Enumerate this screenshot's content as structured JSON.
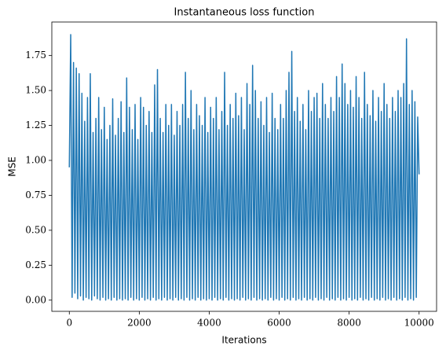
{
  "chart_data": {
    "type": "line",
    "title": "Instantaneous loss function",
    "x_label": "Iterations",
    "y_label": "MSE",
    "xlim": [
      -500,
      10500
    ],
    "ylim": [
      -0.08,
      1.99
    ],
    "xticks": [
      0,
      2000,
      4000,
      6000,
      8000,
      10000
    ],
    "yticks": [
      {
        "value": 0,
        "label": "0.00"
      },
      {
        "value": 0.25,
        "label": "0.25"
      },
      {
        "value": 0.5,
        "label": "0.50"
      },
      {
        "value": 0.75,
        "label": "0.75"
      },
      {
        "value": 1,
        "label": "1.00"
      },
      {
        "value": 1.25,
        "label": "1.25"
      },
      {
        "value": 1.5,
        "label": "1.50"
      },
      {
        "value": 1.75,
        "label": "1.75"
      }
    ],
    "x": [
      0,
      40,
      80,
      120,
      160,
      200,
      240,
      280,
      320,
      360,
      400,
      440,
      480,
      520,
      560,
      600,
      640,
      680,
      720,
      760,
      800,
      840,
      880,
      920,
      960,
      1000,
      1040,
      1080,
      1120,
      1160,
      1200,
      1240,
      1280,
      1320,
      1360,
      1400,
      1440,
      1480,
      1520,
      1560,
      1600,
      1640,
      1680,
      1720,
      1760,
      1800,
      1840,
      1880,
      1920,
      1960,
      2000,
      2040,
      2080,
      2120,
      2160,
      2200,
      2240,
      2280,
      2320,
      2360,
      2400,
      2440,
      2480,
      2520,
      2560,
      2600,
      2640,
      2680,
      2720,
      2760,
      2800,
      2840,
      2880,
      2920,
      2960,
      3000,
      3040,
      3080,
      3120,
      3160,
      3200,
      3240,
      3280,
      3320,
      3360,
      3400,
      3440,
      3480,
      3520,
      3560,
      3600,
      3640,
      3680,
      3720,
      3760,
      3800,
      3840,
      3880,
      3920,
      3960,
      4000,
      4040,
      4080,
      4120,
      4160,
      4200,
      4240,
      4280,
      4320,
      4360,
      4400,
      4440,
      4480,
      4520,
      4560,
      4600,
      4640,
      4680,
      4720,
      4760,
      4800,
      4840,
      4880,
      4920,
      4960,
      5000,
      5040,
      5080,
      5120,
      5160,
      5200,
      5240,
      5280,
      5320,
      5360,
      5400,
      5440,
      5480,
      5520,
      5560,
      5600,
      5640,
      5680,
      5720,
      5760,
      5800,
      5840,
      5880,
      5920,
      5960,
      6000,
      6040,
      6080,
      6120,
      6160,
      6200,
      6240,
      6280,
      6320,
      6360,
      6400,
      6440,
      6480,
      6520,
      6560,
      6600,
      6640,
      6680,
      6720,
      6760,
      6800,
      6840,
      6880,
      6920,
      6960,
      7000,
      7040,
      7080,
      7120,
      7160,
      7200,
      7240,
      7280,
      7320,
      7360,
      7400,
      7440,
      7480,
      7520,
      7560,
      7600,
      7640,
      7680,
      7720,
      7760,
      7800,
      7840,
      7880,
      7920,
      7960,
      8000,
      8040,
      8080,
      8120,
      8160,
      8200,
      8240,
      8280,
      8320,
      8360,
      8400,
      8440,
      8480,
      8520,
      8560,
      8600,
      8640,
      8680,
      8720,
      8760,
      8800,
      8840,
      8880,
      8920,
      8960,
      9000,
      9040,
      9080,
      9120,
      9160,
      9200,
      9240,
      9280,
      9320,
      9360,
      9400,
      9440,
      9480,
      9520,
      9560,
      9600,
      9640,
      9680,
      9720,
      9760,
      9800,
      9840,
      9880,
      9920,
      9960,
      10000
    ],
    "series": [
      {
        "color": "#1f77b4",
        "values": [
          0.95,
          1.9,
          0.02,
          1.7,
          0.05,
          1.66,
          0.01,
          1.62,
          0.03,
          1.48,
          0.0,
          1.28,
          0.02,
          1.45,
          0.01,
          1.62,
          0.0,
          1.2,
          0.03,
          1.3,
          0.01,
          1.45,
          0.0,
          1.22,
          0.02,
          1.38,
          0.0,
          1.15,
          0.01,
          1.25,
          0.0,
          1.44,
          0.02,
          1.18,
          0.0,
          1.3,
          0.01,
          1.42,
          0.0,
          1.2,
          0.01,
          1.59,
          0.0,
          1.38,
          0.02,
          1.22,
          0.0,
          1.4,
          0.01,
          1.15,
          0.0,
          1.45,
          0.02,
          1.38,
          0.0,
          1.25,
          0.01,
          1.35,
          0.0,
          1.2,
          0.02,
          1.54,
          0.0,
          1.65,
          0.01,
          1.3,
          0.0,
          1.2,
          0.02,
          1.4,
          0.0,
          1.25,
          0.01,
          1.4,
          0.0,
          1.18,
          0.02,
          1.35,
          0.0,
          1.25,
          0.01,
          1.4,
          0.0,
          1.63,
          0.02,
          1.3,
          0.0,
          1.5,
          0.01,
          1.22,
          0.0,
          1.4,
          0.02,
          1.32,
          0.0,
          1.25,
          0.01,
          1.45,
          0.0,
          1.2,
          0.01,
          1.38,
          0.0,
          1.3,
          0.02,
          1.45,
          0.0,
          1.22,
          0.01,
          1.35,
          0.0,
          1.63,
          0.02,
          1.25,
          0.0,
          1.4,
          0.01,
          1.3,
          0.0,
          1.48,
          0.01,
          1.32,
          0.0,
          1.45,
          0.02,
          1.22,
          0.0,
          1.55,
          0.01,
          1.4,
          0.0,
          1.68,
          0.02,
          1.5,
          0.0,
          1.3,
          0.01,
          1.42,
          0.0,
          1.25,
          0.01,
          1.45,
          0.0,
          1.2,
          0.02,
          1.48,
          0.0,
          1.3,
          0.01,
          1.22,
          0.0,
          1.4,
          0.02,
          1.3,
          0.0,
          1.5,
          0.01,
          1.63,
          0.0,
          1.78,
          0.02,
          1.35,
          0.0,
          1.45,
          0.01,
          1.28,
          0.0,
          1.4,
          0.02,
          1.22,
          0.0,
          1.5,
          0.01,
          1.35,
          0.0,
          1.45,
          0.02,
          1.48,
          0.0,
          1.3,
          0.01,
          1.55,
          0.0,
          1.4,
          0.02,
          1.3,
          0.0,
          1.45,
          0.01,
          1.35,
          0.0,
          1.6,
          0.02,
          1.45,
          0.0,
          1.69,
          0.01,
          1.55,
          0.0,
          1.4,
          0.02,
          1.5,
          0.0,
          1.38,
          0.01,
          1.6,
          0.0,
          1.45,
          0.02,
          1.3,
          0.0,
          1.63,
          0.01,
          1.4,
          0.0,
          1.32,
          0.02,
          1.5,
          0.0,
          1.28,
          0.01,
          1.45,
          0.0,
          1.35,
          0.02,
          1.55,
          0.0,
          1.4,
          0.01,
          1.3,
          0.0,
          1.45,
          0.02,
          1.35,
          0.0,
          1.5,
          0.01,
          1.45,
          0.0,
          1.55,
          0.02,
          1.87,
          0.0,
          1.4,
          0.01,
          1.5,
          0.0,
          1.42,
          0.02,
          1.31,
          0.9
        ]
      }
    ]
  }
}
